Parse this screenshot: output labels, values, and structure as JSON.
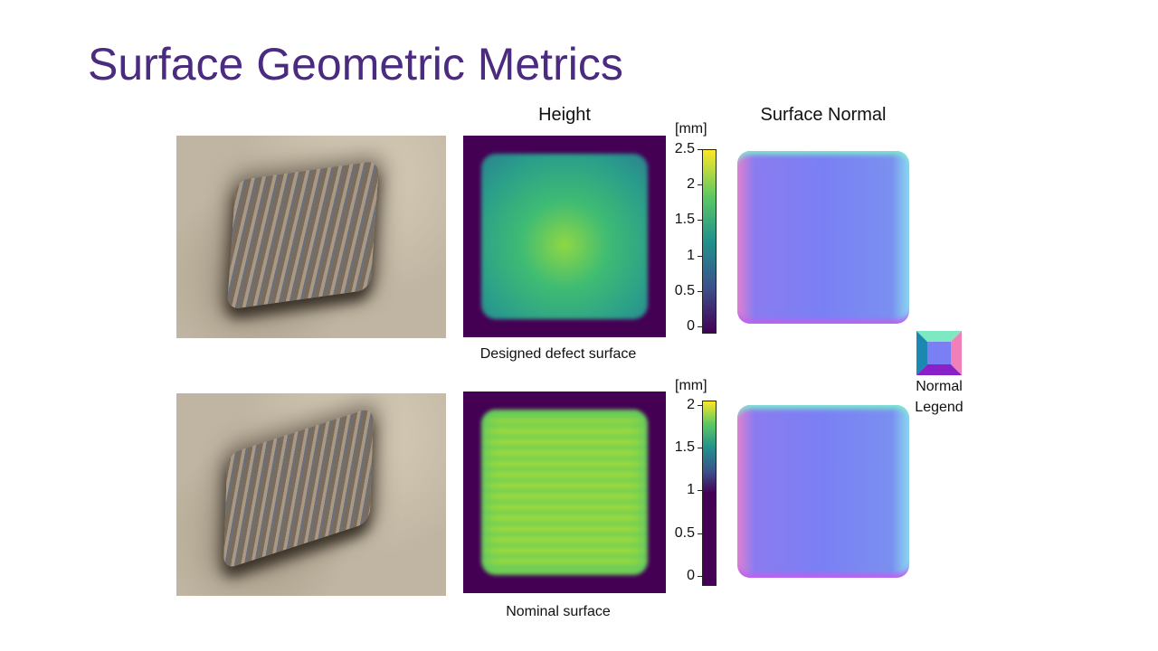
{
  "title": "Surface Geometric Metrics",
  "headers": {
    "height": "Height",
    "normal": "Surface Normal"
  },
  "rows": [
    {
      "caption": "Designed defect surface",
      "colorbar": {
        "unit": "[mm]",
        "ticks": [
          "2.5",
          "2",
          "1.5",
          "1",
          "0.5",
          "0"
        ],
        "range": [
          0,
          2.5
        ]
      }
    },
    {
      "caption": "Nominal surface",
      "colorbar": {
        "unit": "[mm]",
        "ticks": [
          "2",
          "1.5",
          "1",
          "0.5",
          "0"
        ],
        "range": [
          0,
          2
        ]
      }
    }
  ],
  "legend": {
    "line1": "Normal",
    "line2": "Legend"
  },
  "colors": {
    "title": "#4a2b80"
  }
}
